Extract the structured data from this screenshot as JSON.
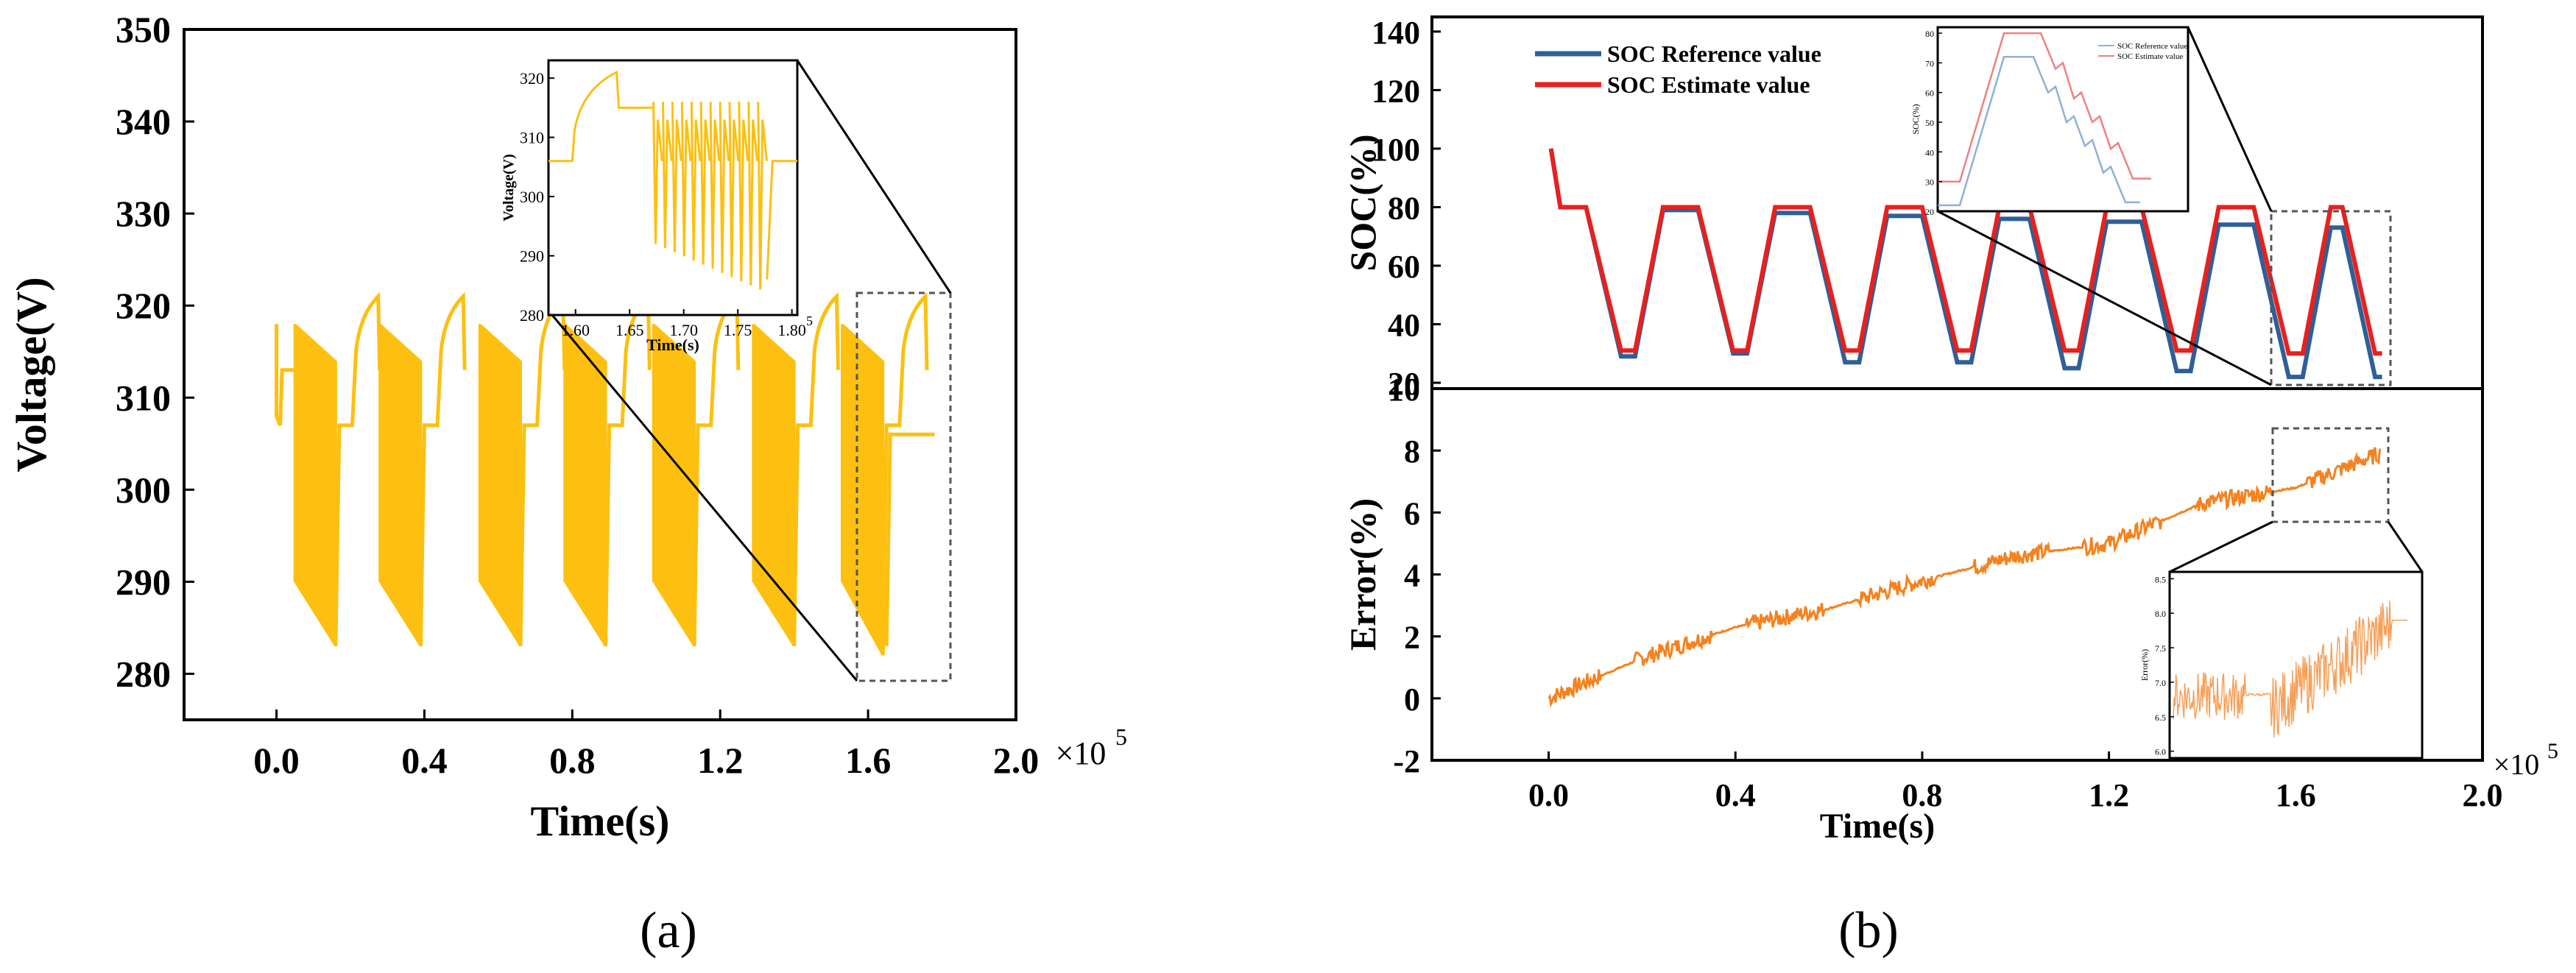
{
  "colors": {
    "voltage": "#FDC010",
    "soc_ref": "#2F5F97",
    "soc_est": "#E8201E",
    "error": "#F5821F",
    "axis": "#000000",
    "dash_box": "#555555",
    "inset_ref": "#8FB0D8",
    "inset_est": "#F08080",
    "inset_err": "#F5A05A"
  },
  "chart_data": [
    {
      "id": "voltage",
      "type": "line",
      "panel": "(a)",
      "xlabel": "Time(s)",
      "ylabel": "Voltage(V)",
      "x_multiplier": "×10",
      "x_multiplier_exp": "5",
      "xlim": [
        -0.25,
        2.0
      ],
      "ylim": [
        275,
        350
      ],
      "xticks": [
        "0.0",
        "0.4",
        "0.8",
        "1.2",
        "1.6",
        "2.0"
      ],
      "xtick_values": [
        0.0,
        0.4,
        0.8,
        1.2,
        1.6,
        2.0
      ],
      "yticks": [
        "280",
        "290",
        "300",
        "310",
        "320",
        "330",
        "340",
        "350"
      ],
      "ytick_values": [
        280,
        290,
        300,
        310,
        320,
        330,
        340,
        350
      ],
      "cycle_starts": [
        0.05,
        0.28,
        0.55,
        0.78,
        1.02,
        1.29,
        1.53
      ],
      "cycle_min_voltage": [
        283,
        283,
        283,
        283,
        283,
        283,
        282
      ],
      "pulse_max_voltage": 318,
      "pulse_min_start": 290,
      "rest_voltage": 307,
      "charge_peak_voltage": 321,
      "inset": {
        "xlabel": "Time(s)",
        "ylabel": "Voltage(V)",
        "xticks": [
          "1.60",
          "1.65",
          "1.70",
          "1.75",
          "1.80"
        ],
        "xtick_values": [
          1.6,
          1.65,
          1.7,
          1.75,
          1.8
        ],
        "x_multiplier_exp": "5",
        "yticks": [
          "280",
          "290",
          "300",
          "310",
          "320"
        ],
        "ytick_values": [
          280,
          290,
          300,
          310,
          320
        ],
        "xlim": [
          1.575,
          1.805
        ],
        "ylim": [
          280,
          323
        ]
      }
    },
    {
      "id": "soc",
      "type": "line",
      "panel": "(b)",
      "ylabel": "SOC(%)",
      "xlim": [
        -0.25,
        2.0
      ],
      "ylim": [
        18,
        145
      ],
      "yticks": [
        "20",
        "40",
        "60",
        "80",
        "100",
        "120",
        "140"
      ],
      "ytick_values": [
        20,
        40,
        60,
        80,
        100,
        120,
        140
      ],
      "series": [
        {
          "name": "SOC Reference value",
          "color_key": "soc_ref",
          "cycle_min": [
            29,
            30,
            27,
            27,
            25,
            24,
            22
          ],
          "cycle_max": [
            79,
            78,
            77,
            76,
            75,
            74,
            73
          ]
        },
        {
          "name": "SOC Estimate value",
          "color_key": "soc_est",
          "cycle_min": [
            31,
            31,
            31,
            31,
            31,
            31,
            30
          ],
          "cycle_max": [
            80,
            80,
            80,
            80,
            80,
            80,
            80
          ]
        }
      ],
      "start_value": 100,
      "initial_plateau": 80,
      "cycle_starts": [
        0.1,
        0.34,
        0.58,
        0.82,
        1.05,
        1.29,
        1.53
      ],
      "cycle_period": 0.24,
      "inset": {
        "ylabel": "SOC(%)",
        "legend": [
          "SOC Reference value",
          "SOC Estimate value"
        ],
        "yticks": [
          "20",
          "30",
          "40",
          "50",
          "60",
          "70",
          "80"
        ],
        "ytick_values": [
          20,
          30,
          40,
          50,
          60,
          70,
          80
        ],
        "ylim": [
          20,
          82
        ]
      }
    },
    {
      "id": "error",
      "type": "line",
      "panel": "(b)",
      "xlabel": "Time(s)",
      "ylabel": "Error(%)",
      "x_multiplier": "×10",
      "x_multiplier_exp": "5",
      "xlim": [
        -0.25,
        2.0
      ],
      "ylim": [
        -2,
        10
      ],
      "xticks": [
        "0.0",
        "0.4",
        "0.8",
        "1.2",
        "1.6",
        "2.0"
      ],
      "xtick_values": [
        0.0,
        0.4,
        0.8,
        1.2,
        1.6,
        2.0
      ],
      "yticks": [
        "-2",
        "0",
        "2",
        "4",
        "6",
        "8",
        "10"
      ],
      "ytick_values": [
        -2,
        0,
        2,
        4,
        6,
        8,
        10
      ],
      "trend_points": [
        [
          0.0,
          0.0
        ],
        [
          0.2,
          1.3
        ],
        [
          0.4,
          2.3
        ],
        [
          0.6,
          2.9
        ],
        [
          0.8,
          3.8
        ],
        [
          1.0,
          4.6
        ],
        [
          1.2,
          5.0
        ],
        [
          1.4,
          6.3
        ],
        [
          1.6,
          6.8
        ],
        [
          1.78,
          7.9
        ]
      ],
      "inset": {
        "ylabel": "Error(%)",
        "yticks": [
          "6.0",
          "6.5",
          "7.0",
          "7.5",
          "8.0",
          "8.5"
        ],
        "ytick_values": [
          6.0,
          6.5,
          7.0,
          7.5,
          8.0,
          8.5
        ],
        "ylim": [
          5.9,
          8.6
        ]
      }
    }
  ],
  "captions": {
    "a": "(a)",
    "b": "(b)"
  }
}
